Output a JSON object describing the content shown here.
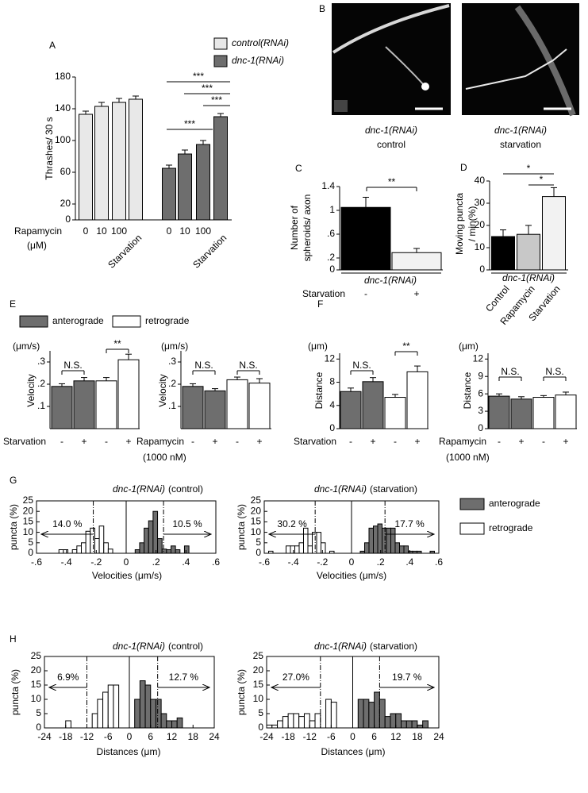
{
  "chart_data": [
    {
      "type": "bar",
      "panel": "A",
      "ylabel": "Thrashes/ 30 s",
      "xlabel": [
        "Rapamycin",
        "(μM)"
      ],
      "categories": [
        "0",
        "10",
        "100",
        "Starvation",
        "0",
        "10",
        "100",
        "Starvation"
      ],
      "values": [
        133,
        143,
        148,
        152,
        65,
        83,
        95,
        130
      ],
      "errors": [
        4,
        5,
        5,
        4,
        4,
        5,
        5,
        4
      ],
      "colors": [
        "#e8e8e8",
        "#e8e8e8",
        "#e8e8e8",
        "#e8e8e8",
        "#6e6e6e",
        "#6e6e6e",
        "#6e6e6e",
        "#6e6e6e"
      ],
      "ylim": [
        0,
        180
      ],
      "yticks": [
        0,
        20,
        60,
        100,
        140,
        180
      ],
      "legend": [
        {
          "name": "control(RNAi)",
          "color": "#e8e8e8"
        },
        {
          "name": "dnc-1(RNAi)",
          "color": "#6e6e6e"
        }
      ],
      "significance": [
        "***",
        "***",
        "***",
        "***"
      ]
    },
    {
      "type": "image",
      "panel": "B",
      "images": [
        {
          "title": "dnc-1(RNAi)",
          "caption": "control"
        },
        {
          "title": "dnc-1(RNAi)",
          "caption": "starvation"
        }
      ]
    },
    {
      "type": "bar",
      "panel": "C",
      "ylabel": [
        "Number of",
        "spheroids/ axon"
      ],
      "group_label": "dnc-1(RNAi)",
      "xlabel": [
        "Starvation"
      ],
      "categories": [
        "-",
        "+"
      ],
      "values": [
        1.05,
        0.29
      ],
      "errors": [
        0.17,
        0.07
      ],
      "colors": [
        "#000000",
        "#f2f2f2"
      ],
      "ylim": [
        0,
        1.4
      ],
      "yticks": [
        0,
        {
          "value": 0.2,
          "label": ".2"
        },
        {
          "value": 0.6,
          "label": ".6"
        },
        1,
        1.4
      ],
      "significance": [
        "**"
      ]
    },
    {
      "type": "bar",
      "panel": "D",
      "ylabel": [
        "Moving puncta",
        "/ min(%)"
      ],
      "group_label": "dnc-1(RNAi)",
      "categories": [
        "Control",
        "Rapamycin",
        "Starvation"
      ],
      "values": [
        15,
        16,
        33
      ],
      "errors": [
        3,
        4,
        4
      ],
      "colors": [
        "#000000",
        "#c8c8c8",
        "#f2f2f2"
      ],
      "ylim": [
        0,
        40
      ],
      "yticks": [
        0,
        10,
        20,
        30,
        40
      ],
      "significance": [
        "*",
        "*"
      ]
    },
    {
      "type": "bar",
      "panel": "E",
      "unit": "(μm/s)",
      "ylabel": "Velocity",
      "xlabel": [
        "Starvation"
      ],
      "legend": [
        {
          "name": "anterograde",
          "color": "#6e6e6e"
        },
        {
          "name": "retrograde",
          "color": "#ffffff"
        }
      ],
      "categories": [
        "-",
        "+",
        "-",
        "+"
      ],
      "values": [
        0.19,
        0.215,
        0.215,
        0.31
      ],
      "errors": [
        0.012,
        0.015,
        0.015,
        0.025
      ],
      "colors": [
        "#6e6e6e",
        "#6e6e6e",
        "#ffffff",
        "#ffffff"
      ],
      "ylim": [
        0,
        0.35
      ],
      "yticks": [
        {
          "value": 0.1,
          "label": ".1"
        },
        {
          "value": 0.2,
          "label": ".2"
        },
        {
          "value": 0.3,
          "label": ".3"
        }
      ],
      "significance": [
        "N.S.",
        "**"
      ]
    },
    {
      "type": "bar",
      "unit": "(μm/s)",
      "ylabel": "Velocity",
      "xlabel": [
        "Rapamycin",
        "(1000 nM)"
      ],
      "categories": [
        "-",
        "+",
        "-",
        "+"
      ],
      "values": [
        0.19,
        0.17,
        0.22,
        0.205
      ],
      "errors": [
        0.012,
        0.01,
        0.012,
        0.02
      ],
      "colors": [
        "#6e6e6e",
        "#6e6e6e",
        "#ffffff",
        "#ffffff"
      ],
      "ylim": [
        0,
        0.35
      ],
      "yticks": [
        {
          "value": 0.1,
          "label": ".1"
        },
        {
          "value": 0.2,
          "label": ".2"
        },
        {
          "value": 0.3,
          "label": ".3"
        }
      ],
      "significance": [
        "N.S.",
        "N.S."
      ]
    },
    {
      "type": "bar",
      "panel": "F",
      "unit": "(μm)",
      "ylabel": "Distance",
      "xlabel": [
        "Starvation"
      ],
      "categories": [
        "-",
        "+",
        "-",
        "+"
      ],
      "values": [
        6.4,
        8.1,
        5.4,
        9.8
      ],
      "errors": [
        0.6,
        0.7,
        0.5,
        1
      ],
      "colors": [
        "#6e6e6e",
        "#6e6e6e",
        "#ffffff",
        "#ffffff"
      ],
      "ylim": [
        0,
        13
      ],
      "yticks": [
        0,
        4,
        8,
        12
      ],
      "significance": [
        "N.S.",
        "**"
      ]
    },
    {
      "type": "bar",
      "unit": "(μm)",
      "ylabel": "Distance",
      "xlabel": [
        "Rapamycin",
        "(1000 nM)"
      ],
      "categories": [
        "-",
        "+",
        "-",
        "+"
      ],
      "values": [
        5.6,
        5.1,
        5.4,
        5.8
      ],
      "errors": [
        0.4,
        0.4,
        0.3,
        0.5
      ],
      "colors": [
        "#6e6e6e",
        "#6e6e6e",
        "#ffffff",
        "#ffffff"
      ],
      "ylim": [
        0,
        13
      ],
      "yticks": [
        0,
        3,
        6,
        9,
        12
      ],
      "significance": [
        "N.S.",
        "N.S."
      ]
    },
    {
      "type": "histogram",
      "panel": "G",
      "title": "dnc-1(RNAi)",
      "subtitle": "(control)",
      "xlabel": "Velocities (μm/s)",
      "ylabel": "puncta (%)",
      "xlim": [
        -0.6,
        0.6
      ],
      "xticks": [
        {
          "value": -0.6,
          "label": "-.6"
        },
        {
          "value": -0.4,
          "label": "-.4"
        },
        {
          "value": -0.2,
          "label": "-.2"
        },
        0,
        {
          "value": 0.2,
          "label": ".2"
        },
        {
          "value": 0.4,
          "label": ".4"
        },
        {
          "value": 0.6,
          "label": ".6"
        }
      ],
      "ylim": [
        0,
        25
      ],
      "yticks": [
        0,
        5,
        10,
        15,
        20,
        25
      ],
      "thresholds": [
        -0.22,
        0.25
      ],
      "annotations": [
        "14.0 %",
        "10.5 %"
      ],
      "legend": [
        {
          "name": "anterograde",
          "color": "#6e6e6e"
        },
        {
          "name": "retrograde",
          "color": "#ffffff"
        }
      ],
      "series": [
        {
          "color": "#ffffff",
          "bins": [
            -0.45,
            -0.42,
            -0.39,
            -0.36,
            -0.33,
            -0.3,
            -0.27,
            -0.24,
            -0.21,
            -0.18,
            -0.15,
            -0.12,
            -0.09
          ],
          "values": [
            1.7,
            1.7,
            0,
            1.7,
            3.5,
            5,
            10.5,
            12,
            7,
            13,
            5,
            2
          ]
        },
        {
          "color": "#6e6e6e",
          "bins": [
            0.06,
            0.09,
            0.12,
            0.15,
            0.18,
            0.21,
            0.24,
            0.27,
            0.3,
            0.33,
            0.36,
            0.39,
            0.42
          ],
          "values": [
            1.7,
            5,
            12,
            15.5,
            20,
            7,
            2,
            1.7,
            3.5,
            1.7,
            0,
            3.5
          ]
        }
      ]
    },
    {
      "type": "histogram",
      "title": "dnc-1(RNAi)",
      "subtitle": "(starvation)",
      "xlabel": "Velocities (μm/s)",
      "ylabel": "puncta (%)",
      "xlim": [
        -0.6,
        0.6
      ],
      "xticks": [
        {
          "value": -0.6,
          "label": "-.6"
        },
        {
          "value": -0.4,
          "label": "-.4"
        },
        {
          "value": -0.2,
          "label": "-.2"
        },
        0,
        {
          "value": 0.2,
          "label": ".2"
        },
        {
          "value": 0.4,
          "label": ".4"
        },
        {
          "value": 0.6,
          "label": ".6"
        }
      ],
      "ylim": [
        0,
        25
      ],
      "yticks": [
        0,
        5,
        10,
        15,
        20,
        25
      ],
      "thresholds": [
        -0.25,
        0.23
      ],
      "annotations": [
        "30.2 %",
        "17.7 %"
      ],
      "series": [
        {
          "color": "#ffffff",
          "bins": [
            -0.57,
            -0.54,
            -0.51,
            -0.48,
            -0.45,
            -0.42,
            -0.39,
            -0.36,
            -0.33,
            -0.3,
            -0.27,
            -0.24,
            -0.21,
            -0.18,
            -0.15,
            -0.12
          ],
          "values": [
            1,
            0,
            0,
            0,
            3.5,
            3.5,
            3.5,
            5,
            12,
            3.5,
            10,
            10,
            5,
            0,
            1
          ]
        },
        {
          "color": "#6e6e6e",
          "bins": [
            0.06,
            0.09,
            0.12,
            0.15,
            0.18,
            0.21,
            0.24,
            0.27,
            0.3,
            0.33,
            0.36,
            0.39,
            0.42,
            0.45,
            0.48,
            0.51,
            0.54,
            0.57
          ],
          "values": [
            1,
            5,
            12,
            13,
            14,
            12,
            12,
            12,
            5,
            3.5,
            3.5,
            1,
            1,
            1,
            0,
            0,
            1
          ]
        }
      ]
    },
    {
      "type": "histogram",
      "panel": "H",
      "title": "dnc-1(RNAi)",
      "subtitle": "(control)",
      "xlabel": "Distances  (μm)",
      "ylabel": "puncta (%)",
      "xlim": [
        -24,
        24
      ],
      "xticks": [
        -24,
        -18,
        -12,
        -6,
        0,
        6,
        12,
        18,
        24
      ],
      "ylim": [
        0,
        25
      ],
      "yticks": [
        0,
        5,
        10,
        15,
        20,
        25
      ],
      "thresholds": [
        -12,
        8
      ],
      "annotations": [
        "6.9%",
        "12.7 %"
      ],
      "series": [
        {
          "color": "#ffffff",
          "bins": [
            -18,
            -16.5,
            -15,
            -13.5,
            -12,
            -10.5,
            -9,
            -7.5,
            -6,
            -4.5,
            -3,
            -1.5
          ],
          "values": [
            2.5,
            0,
            0,
            0,
            0,
            5,
            10,
            12.5,
            15,
            15,
            0
          ]
        },
        {
          "color": "#6e6e6e",
          "bins": [
            1.5,
            3,
            4.5,
            6,
            7.5,
            9,
            10.5,
            12,
            13.5,
            15
          ],
          "values": [
            10,
            16.5,
            15,
            10,
            10,
            5,
            2.5,
            2.5,
            3.5
          ]
        }
      ]
    },
    {
      "type": "histogram",
      "title": "dnc-1(RNAi)",
      "subtitle": "(starvation)",
      "xlabel": "Distances  (μm)",
      "ylabel": "puncta (%)",
      "xlim": [
        -24,
        24
      ],
      "xticks": [
        -24,
        -18,
        -12,
        -6,
        0,
        6,
        12,
        18,
        24
      ],
      "ylim": [
        0,
        25
      ],
      "yticks": [
        0,
        5,
        10,
        15,
        20,
        25
      ],
      "thresholds": [
        -9,
        7.5
      ],
      "annotations": [
        "27.0%",
        "19.7 %"
      ],
      "series": [
        {
          "color": "#ffffff",
          "bins": [
            -24,
            -22.5,
            -21,
            -19.5,
            -18,
            -16.5,
            -15,
            -13.5,
            -12,
            -10.5,
            -9,
            -7.5,
            -6,
            -4.5,
            -3
          ],
          "values": [
            1,
            1,
            2.5,
            4,
            5,
            5,
            4,
            5,
            2.5,
            5,
            0,
            10,
            9,
            0
          ]
        },
        {
          "color": "#6e6e6e",
          "bins": [
            1.5,
            3,
            4.5,
            6,
            7.5,
            9,
            10.5,
            12,
            13.5,
            15,
            16.5,
            18,
            19.5,
            21
          ],
          "values": [
            10,
            10,
            9,
            12.5,
            10,
            4,
            5,
            5,
            2.5,
            2.5,
            2.5,
            1,
            2.5
          ]
        }
      ]
    }
  ]
}
